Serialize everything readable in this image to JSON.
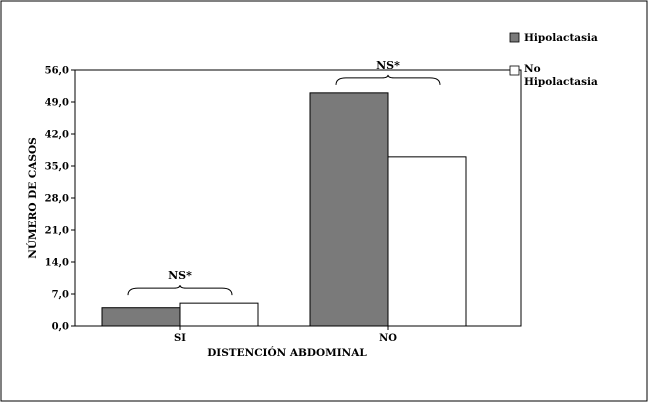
{
  "chart_data": {
    "type": "bar",
    "categories": [
      "SI",
      "NO"
    ],
    "series": [
      {
        "name": "Hipolactasia",
        "values": [
          4.0,
          51.0
        ],
        "color": "#7a7a7a"
      },
      {
        "name": "No\nHipolactasia",
        "values": [
          5.0,
          37.0
        ],
        "color": "#ffffff"
      }
    ],
    "xlabel": "DISTENCIÓN ABDOMINAL",
    "ylabel": "NÚMERO DE CASOS",
    "ylim": [
      0,
      56
    ],
    "yticks": [
      "0,0",
      "7,0",
      "14,0",
      "21,0",
      "28,0",
      "35,0",
      "42,0",
      "49,0",
      "56,0"
    ],
    "ytick_values": [
      0,
      7,
      14,
      21,
      28,
      35,
      42,
      49,
      56
    ],
    "annotations": [
      {
        "category": "SI",
        "text": "NS*"
      },
      {
        "category": "NO",
        "text": "NS*"
      }
    ],
    "legend_position": "top-right",
    "grid": false
  }
}
